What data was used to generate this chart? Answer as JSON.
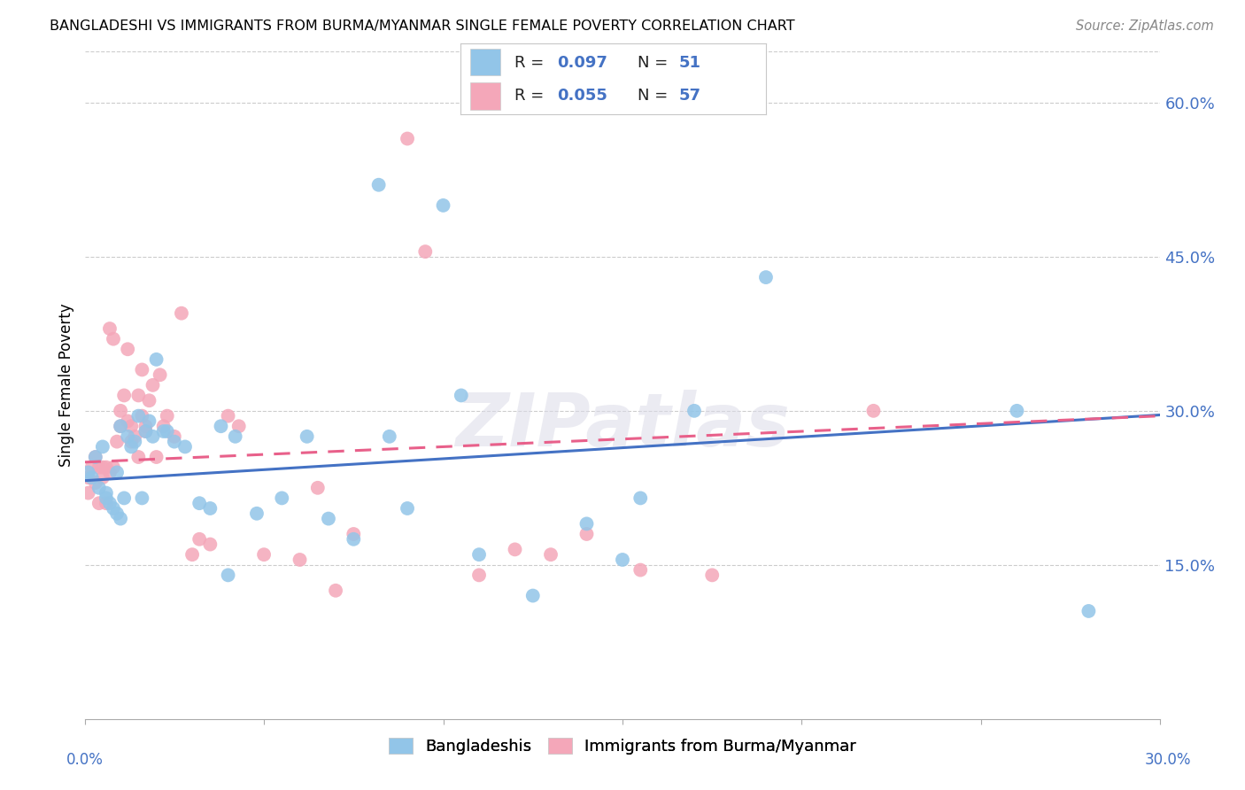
{
  "title": "BANGLADESHI VS IMMIGRANTS FROM BURMA/MYANMAR SINGLE FEMALE POVERTY CORRELATION CHART",
  "source": "Source: ZipAtlas.com",
  "ylabel": "Single Female Poverty",
  "y_tick_labels": [
    "15.0%",
    "30.0%",
    "45.0%",
    "60.0%"
  ],
  "y_tick_values": [
    0.15,
    0.3,
    0.45,
    0.6
  ],
  "xlim": [
    0.0,
    0.3
  ],
  "ylim": [
    0.0,
    0.65
  ],
  "blue_color": "#92C5E8",
  "pink_color": "#F4A7B9",
  "trend_blue_color": "#4472C4",
  "trend_pink_color": "#E8608A",
  "blue_scatter_x": [
    0.001,
    0.002,
    0.003,
    0.004,
    0.005,
    0.006,
    0.006,
    0.007,
    0.008,
    0.009,
    0.009,
    0.01,
    0.01,
    0.011,
    0.012,
    0.013,
    0.014,
    0.015,
    0.016,
    0.017,
    0.018,
    0.019,
    0.02,
    0.022,
    0.023,
    0.025,
    0.028,
    0.032,
    0.035,
    0.038,
    0.042,
    0.048,
    0.055,
    0.062,
    0.068,
    0.075,
    0.082,
    0.09,
    0.105,
    0.11,
    0.125,
    0.14,
    0.155,
    0.17,
    0.19,
    0.26,
    0.28,
    0.085,
    0.1,
    0.15,
    0.04
  ],
  "blue_scatter_y": [
    0.24,
    0.235,
    0.255,
    0.225,
    0.265,
    0.22,
    0.215,
    0.21,
    0.205,
    0.24,
    0.2,
    0.195,
    0.285,
    0.215,
    0.275,
    0.265,
    0.27,
    0.295,
    0.215,
    0.28,
    0.29,
    0.275,
    0.35,
    0.28,
    0.28,
    0.27,
    0.265,
    0.21,
    0.205,
    0.285,
    0.275,
    0.2,
    0.215,
    0.275,
    0.195,
    0.175,
    0.52,
    0.205,
    0.315,
    0.16,
    0.12,
    0.19,
    0.215,
    0.3,
    0.43,
    0.3,
    0.105,
    0.275,
    0.5,
    0.155,
    0.14
  ],
  "pink_scatter_x": [
    0.001,
    0.001,
    0.002,
    0.003,
    0.003,
    0.004,
    0.004,
    0.005,
    0.005,
    0.006,
    0.006,
    0.007,
    0.007,
    0.008,
    0.008,
    0.009,
    0.01,
    0.01,
    0.011,
    0.012,
    0.012,
    0.013,
    0.013,
    0.014,
    0.015,
    0.015,
    0.016,
    0.016,
    0.017,
    0.017,
    0.018,
    0.019,
    0.02,
    0.021,
    0.022,
    0.023,
    0.025,
    0.027,
    0.03,
    0.032,
    0.035,
    0.04,
    0.043,
    0.05,
    0.06,
    0.065,
    0.07,
    0.075,
    0.09,
    0.095,
    0.11,
    0.12,
    0.13,
    0.14,
    0.155,
    0.175,
    0.22
  ],
  "pink_scatter_y": [
    0.235,
    0.22,
    0.245,
    0.23,
    0.255,
    0.245,
    0.21,
    0.235,
    0.245,
    0.245,
    0.21,
    0.24,
    0.38,
    0.245,
    0.37,
    0.27,
    0.285,
    0.3,
    0.315,
    0.29,
    0.36,
    0.27,
    0.285,
    0.275,
    0.315,
    0.255,
    0.295,
    0.34,
    0.28,
    0.285,
    0.31,
    0.325,
    0.255,
    0.335,
    0.285,
    0.295,
    0.275,
    0.395,
    0.16,
    0.175,
    0.17,
    0.295,
    0.285,
    0.16,
    0.155,
    0.225,
    0.125,
    0.18,
    0.565,
    0.455,
    0.14,
    0.165,
    0.16,
    0.18,
    0.145,
    0.14,
    0.3
  ],
  "blue_trend_y_start": 0.232,
  "blue_trend_y_end": 0.296,
  "pink_trend_y_start": 0.25,
  "pink_trend_y_end": 0.295
}
